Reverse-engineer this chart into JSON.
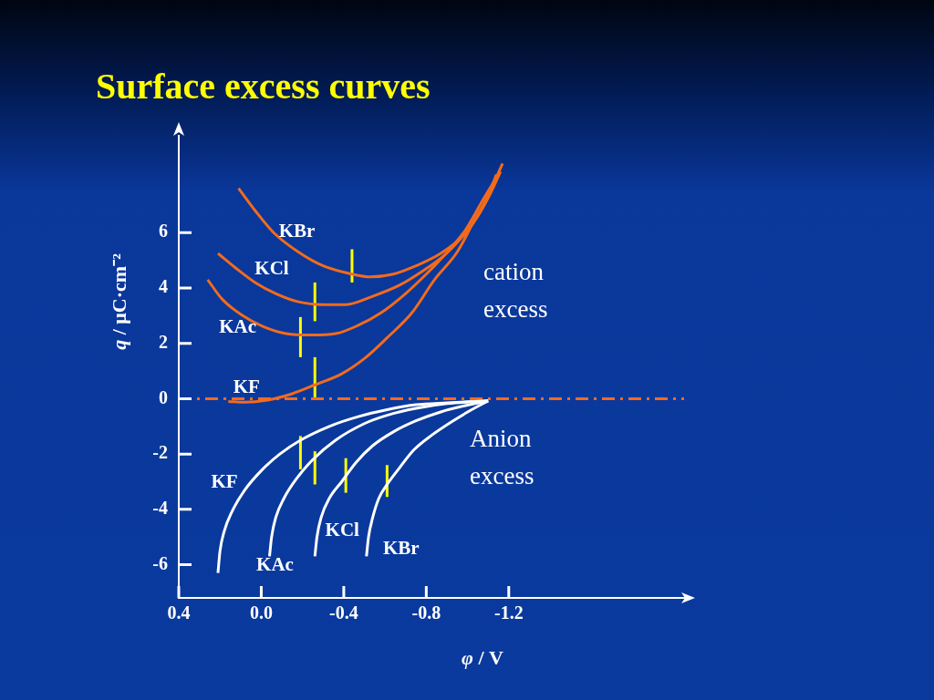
{
  "chart_data": {
    "type": "line",
    "title": "Surface excess curves",
    "xlabel": "φ / V",
    "ylabel": "q / μC·cm⁻²",
    "annotations": [
      "cation excess",
      "Anion excess"
    ],
    "xlim": [
      0.4,
      -2.05
    ],
    "xticks": [
      0.4,
      {
        "value": 0,
        "label": "0.0"
      },
      -0.4,
      -0.8,
      -1.2
    ],
    "ylim": [
      -7.2,
      9.5
    ],
    "yticks": [
      6,
      4,
      2,
      0,
      -2,
      -4,
      -6
    ],
    "grid": false,
    "marker": "none",
    "ref_lines": [
      {
        "axis": "y",
        "value": 0,
        "color": "#f26b1d",
        "line_style": "dashed"
      }
    ],
    "series": [
      {
        "name": "KBr",
        "color": "#f26b1d",
        "x": [
          0.11,
          0.03,
          -0.06,
          -0.18,
          -0.3,
          -0.44,
          -0.53,
          -0.64,
          -0.75,
          -0.87,
          -0.98,
          -1.05,
          -1.11,
          -1.17
        ],
        "values": [
          7.6,
          6.8,
          6.0,
          5.3,
          4.8,
          4.5,
          4.4,
          4.5,
          4.8,
          5.25,
          5.9,
          6.6,
          7.5,
          8.5
        ]
      },
      {
        "name": "KCl",
        "color": "#f26b1d",
        "x": [
          0.21,
          0.12,
          0.03,
          -0.07,
          -0.18,
          -0.3,
          -0.41,
          -0.54,
          -0.67,
          -0.78,
          -0.89,
          -0.98,
          -1.05,
          -1.11,
          -1.16
        ],
        "values": [
          5.25,
          4.7,
          4.2,
          3.8,
          3.5,
          3.4,
          3.4,
          3.7,
          4.1,
          4.6,
          5.2,
          5.9,
          6.6,
          7.4,
          8.2
        ]
      },
      {
        "name": "KAc",
        "color": "#f26b1d",
        "x": [
          0.26,
          0.19,
          0.09,
          -0.01,
          -0.12,
          -0.24,
          -0.36,
          -0.47,
          -0.58,
          -0.7,
          -0.8,
          -0.89,
          -0.99,
          -1.08,
          -1.15
        ],
        "values": [
          4.3,
          3.6,
          3.0,
          2.6,
          2.35,
          2.3,
          2.35,
          2.65,
          3.1,
          3.8,
          4.5,
          5.2,
          6.1,
          7.25,
          8.1
        ]
      },
      {
        "name": "KF",
        "color": "#f26b1d",
        "x": [
          0.16,
          0.08,
          -0.03,
          -0.15,
          -0.26,
          -0.39,
          -0.5,
          -0.61,
          -0.73,
          -0.84,
          -0.95,
          -1.03,
          -1.1,
          -1.14
        ],
        "values": [
          -0.1,
          -0.13,
          -0.05,
          0.18,
          0.5,
          0.9,
          1.45,
          2.2,
          3.1,
          4.3,
          5.3,
          6.4,
          7.35,
          8.1
        ]
      },
      {
        "name": "KF",
        "color": "#ffffff",
        "x": [
          0.21,
          0.2,
          0.18,
          0.14,
          0.08,
          0.0,
          -0.09,
          -0.19,
          -0.33,
          -0.47,
          -0.61,
          -0.75,
          -0.9,
          -1.1
        ],
        "values": [
          -6.3,
          -5.5,
          -4.8,
          -4.05,
          -3.3,
          -2.6,
          -2.0,
          -1.5,
          -1.0,
          -0.65,
          -0.4,
          -0.22,
          -0.15,
          -0.08
        ]
      },
      {
        "name": "KAc",
        "color": "#ffffff",
        "x": [
          -0.04,
          -0.05,
          -0.07,
          -0.11,
          -0.17,
          -0.25,
          -0.36,
          -0.5,
          -0.61,
          -0.75,
          -0.9,
          -1.1
        ],
        "values": [
          -5.7,
          -5.0,
          -4.3,
          -3.6,
          -2.9,
          -2.2,
          -1.5,
          -0.9,
          -0.6,
          -0.35,
          -0.18,
          -0.08
        ]
      },
      {
        "name": "KCl",
        "color": "#ffffff",
        "x": [
          -0.26,
          -0.27,
          -0.29,
          -0.33,
          -0.39,
          -0.46,
          -0.54,
          -0.64,
          -0.75,
          -0.87,
          -0.99,
          -1.1
        ],
        "values": [
          -5.7,
          -5.0,
          -4.3,
          -3.6,
          -3.0,
          -2.3,
          -1.7,
          -1.2,
          -0.8,
          -0.48,
          -0.25,
          -0.08
        ]
      },
      {
        "name": "KBr",
        "color": "#ffffff",
        "x": [
          -0.51,
          -0.52,
          -0.54,
          -0.57,
          -0.61,
          -0.67,
          -0.74,
          -0.83,
          -0.93,
          -1.02,
          -1.1
        ],
        "values": [
          -5.7,
          -5.0,
          -4.3,
          -3.6,
          -3.1,
          -2.5,
          -1.85,
          -1.3,
          -0.8,
          -0.4,
          -0.08
        ]
      },
      {
        "color": "#ffff00",
        "x": [
          -0.44,
          -0.44
        ],
        "values": [
          5.4,
          4.2
        ]
      },
      {
        "color": "#ffff00",
        "x": [
          -0.26,
          -0.26
        ],
        "values": [
          4.2,
          2.8
        ]
      },
      {
        "color": "#ffff00",
        "x": [
          -0.19,
          -0.19
        ],
        "values": [
          2.95,
          1.5
        ]
      },
      {
        "color": "#ffff00",
        "x": [
          -0.26,
          -0.26
        ],
        "values": [
          1.5,
          0.05
        ]
      },
      {
        "color": "#ffff00",
        "x": [
          -0.19,
          -0.19
        ],
        "values": [
          -1.35,
          -2.55
        ]
      },
      {
        "color": "#ffff00",
        "x": [
          -0.26,
          -0.26
        ],
        "values": [
          -1.9,
          -3.1
        ]
      },
      {
        "color": "#ffff00",
        "x": [
          -0.41,
          -0.41
        ],
        "values": [
          -2.15,
          -3.4
        ]
      },
      {
        "color": "#ffff00",
        "x": [
          -0.61,
          -0.61
        ],
        "values": [
          -2.4,
          -3.55
        ]
      }
    ]
  }
}
